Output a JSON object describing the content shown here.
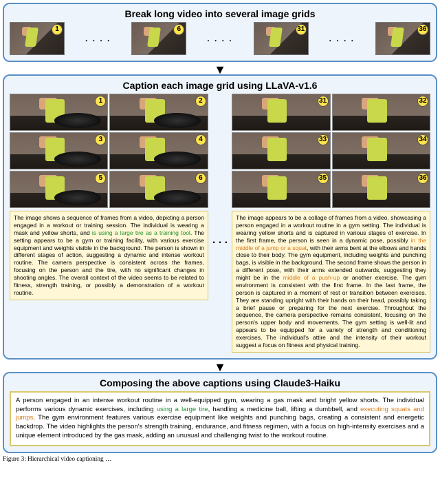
{
  "top": {
    "title": "Break long video into several image grids",
    "frames": [
      "1",
      "6",
      "31",
      "36"
    ]
  },
  "mid": {
    "title": "Caption each image grid using LLaVA-v1.6",
    "left_nums": [
      "1",
      "2",
      "3",
      "4",
      "5",
      "6"
    ],
    "right_nums": [
      "31",
      "32",
      "33",
      "34",
      "35",
      "36"
    ],
    "left_cap_a": "The image shows a sequence of frames from a video, depicting a person engaged in a workout or training session. The individual is wearing a mask and yellow shorts, and ",
    "left_cap_hl": "is using a large tire as a training tool",
    "left_cap_b": ". The setting appears to be a gym or training facility, with various exercise equipment and weights visible in the background. The person is shown in different stages of action, suggesting a dynamic and intense workout routine. The camera perspective is consistent across the frames, focusing on the person and the tire, with no significant changes in shooting angles. The overall context of the video seems to be related to fitness, strength training, or possibly a demonstration of a workout routine.",
    "right_cap_a": "The image appears to be a collage of frames from a video, showcasing a person engaged in a workout routine in a gym setting. The individual is wearing yellow shorts and is captured in various stages of exercise. In the first frame, the person is seen in a dynamic pose, possibly ",
    "right_cap_hl1": "in the middle of a jump or a squat",
    "right_cap_b": ", with their arms bent at the elbows and hands close to their body. The gym equipment, including weights and punching bags, is visible in the background. The second frame shows the person in a different pose, with their arms extended outwards, suggesting they might be in the ",
    "right_cap_hl2": "middle of a push-up",
    "right_cap_c": " or another exercise. The gym environment is consistent with the first frame. In the last frame, the person is captured in a moment of rest or transition between exercises. They are standing upright with their hands on their head, possibly taking a brief pause or preparing for the next exercise. Throughout the sequence, the camera perspective remains consistent, focusing on the person's upper body and movements. The gym setting is well-lit and appears to be equipped for a variety of strength and conditioning exercises. The individual's attire and the intensity of their workout suggest a focus on fitness and physical training."
  },
  "bottom": {
    "title": "Composing the above captions using Claude3-Haiku",
    "cap_a": "A person engaged in an intense workout routine in a well-equipped gym, wearing a gas mask and bright yellow shorts. The individual performs various dynamic exercises, including ",
    "cap_hl1": "using a large tire",
    "cap_b": ", handling a medicine ball, lifting a dumbbell, and ",
    "cap_hl2": "executing squats and jumps",
    "cap_c": ". The gym environment features various exercise equipment like weights and punching bags, creating a consistent and energetic backdrop. The video highlights the person's strength training, endurance, and fitness regimen, with a focus on high-intensity exercises and a unique element introduced by the gas mask, adding an unusual and challenging twist to the workout routine."
  },
  "ellipsis": ". . . .",
  "ellipsis3": ". . .",
  "figcap": "Figure 3: Hierarchical video captioning …"
}
